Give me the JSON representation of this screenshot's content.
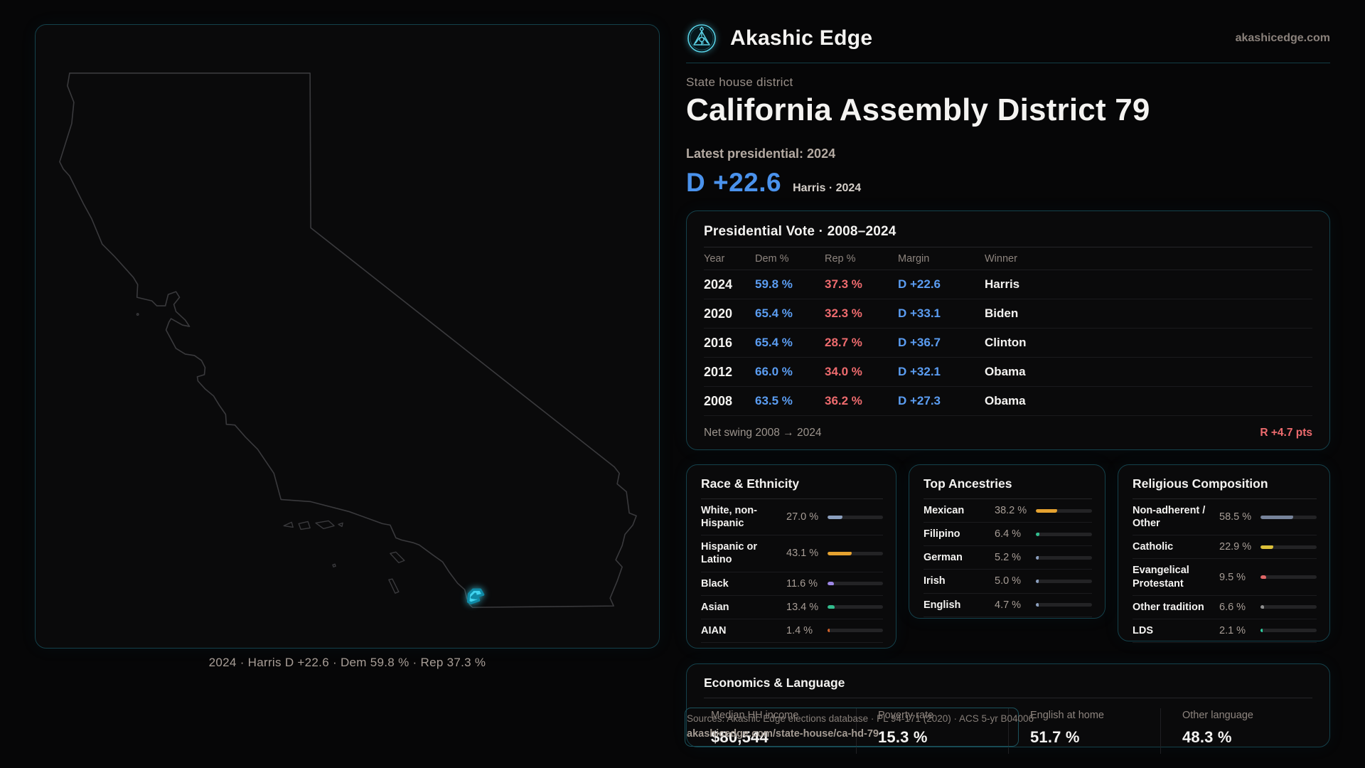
{
  "site": {
    "brand": "Akashic Edge",
    "domain": "akashicedge.com"
  },
  "header": {
    "eyebrow": "State house district",
    "title": "California Assembly District 79",
    "latest_label": "Latest presidential: 2024",
    "hero_margin": "D +22.6",
    "hero_sub": "Harris · 2024"
  },
  "map": {
    "caption": "2024 · Harris D +22.6 · Dem 59.8 % · Rep 37.3 %"
  },
  "pres_table": {
    "title": "Presidential Vote · 2008–2024",
    "columns": [
      "Year",
      "Dem %",
      "Rep %",
      "Margin",
      "Winner"
    ],
    "rows": [
      {
        "year": "2024",
        "dem": "59.8 %",
        "rep": "37.3 %",
        "margin": "D +22.6",
        "winner": "Harris"
      },
      {
        "year": "2020",
        "dem": "65.4 %",
        "rep": "32.3 %",
        "margin": "D +33.1",
        "winner": "Biden"
      },
      {
        "year": "2016",
        "dem": "65.4 %",
        "rep": "28.7 %",
        "margin": "D +36.7",
        "winner": "Clinton"
      },
      {
        "year": "2012",
        "dem": "66.0 %",
        "rep": "34.0 %",
        "margin": "D +32.1",
        "winner": "Obama"
      },
      {
        "year": "2008",
        "dem": "63.5 %",
        "rep": "36.2 %",
        "margin": "D +27.3",
        "winner": "Obama"
      }
    ],
    "net_swing_label": "Net swing 2008 → 2024",
    "net_swing_value": "R +4.7 pts"
  },
  "race": {
    "title": "Race & Ethnicity",
    "rows": [
      {
        "label": "White, non-Hispanic",
        "value": "27.0 %",
        "pct": 27.0,
        "color": "#8b9fbe"
      },
      {
        "label": "Hispanic or Latino",
        "value": "43.1 %",
        "pct": 43.1,
        "color": "#e5a230"
      },
      {
        "label": "Black",
        "value": "11.6 %",
        "pct": 11.6,
        "color": "#9d87e6"
      },
      {
        "label": "Asian",
        "value": "13.4 %",
        "pct": 13.4,
        "color": "#32bd8e"
      },
      {
        "label": "AIAN",
        "value": "1.4 %",
        "pct": 1.4,
        "color": "#d4622a"
      }
    ]
  },
  "ancestries": {
    "title": "Top Ancestries",
    "rows": [
      {
        "label": "Mexican",
        "value": "38.2 %",
        "pct": 38.2,
        "color": "#e5a230"
      },
      {
        "label": "Filipino",
        "value": "6.4 %",
        "pct": 6.4,
        "color": "#32bd8e"
      },
      {
        "label": "German",
        "value": "5.2 %",
        "pct": 5.2,
        "color": "#8b9fbe"
      },
      {
        "label": "Irish",
        "value": "5.0 %",
        "pct": 5.0,
        "color": "#8b9fbe"
      },
      {
        "label": "English",
        "value": "4.7 %",
        "pct": 4.7,
        "color": "#8b9fbe"
      }
    ]
  },
  "religion": {
    "title": "Religious Composition",
    "rows": [
      {
        "label": "Non-adherent / Other",
        "value": "58.5 %",
        "pct": 58.5,
        "color": "#76839a"
      },
      {
        "label": "Catholic",
        "value": "22.9 %",
        "pct": 22.9,
        "color": "#ddc13a"
      },
      {
        "label": "Evangelical Protestant",
        "value": "9.5 %",
        "pct": 9.5,
        "color": "#e06767"
      },
      {
        "label": "Other tradition",
        "value": "6.6 %",
        "pct": 6.6,
        "color": "#8f8f8f"
      },
      {
        "label": "LDS",
        "value": "2.1 %",
        "pct": 2.1,
        "color": "#2fd0a0"
      }
    ]
  },
  "economics": {
    "title": "Economics & Language",
    "stats": [
      {
        "label": "Median HH income",
        "value": "$80,544"
      },
      {
        "label": "Poverty rate",
        "value": "15.3 %"
      },
      {
        "label": "English at home",
        "value": "51.7 %"
      },
      {
        "label": "Other language",
        "value": "48.3 %"
      }
    ]
  },
  "source": {
    "line1": "Sources: Akashic Edge elections database · PL 94-171 (2020) · ACS 5-yr B04006",
    "line2": "akashicedge.com/state-house/ca-hd-79"
  }
}
